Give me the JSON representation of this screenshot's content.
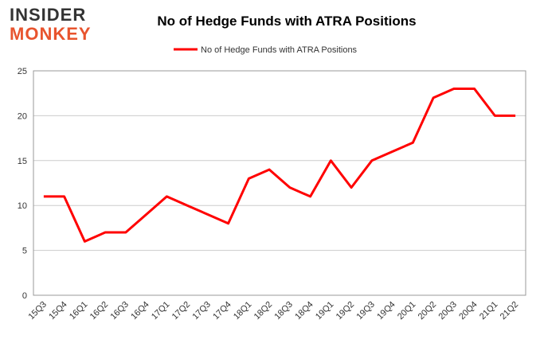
{
  "logo": {
    "line1": "INSIDER",
    "line2": "MONKEY"
  },
  "chart_data": {
    "type": "line",
    "title": "No of Hedge Funds with ATRA Positions",
    "categories": [
      "15Q3",
      "15Q4",
      "16Q1",
      "16Q2",
      "16Q3",
      "16Q4",
      "17Q1",
      "17Q2",
      "17Q3",
      "17Q4",
      "18Q1",
      "18Q2",
      "18Q3",
      "18Q4",
      "19Q1",
      "19Q2",
      "19Q3",
      "19Q4",
      "20Q1",
      "20Q2",
      "20Q3",
      "20Q4",
      "21Q1",
      "21Q2"
    ],
    "series": [
      {
        "name": "No of Hedge Funds with ATRA Positions",
        "color": "#ff0000",
        "values": [
          11,
          11,
          6,
          7,
          7,
          9,
          11,
          10,
          9,
          8,
          13,
          14,
          12,
          11,
          15,
          12,
          15,
          16,
          17,
          22,
          23,
          23,
          20,
          20
        ]
      }
    ],
    "ylim": [
      0,
      25
    ],
    "yticks": [
      0,
      5,
      10,
      15,
      20,
      25
    ],
    "grid": true,
    "legend": "top"
  }
}
